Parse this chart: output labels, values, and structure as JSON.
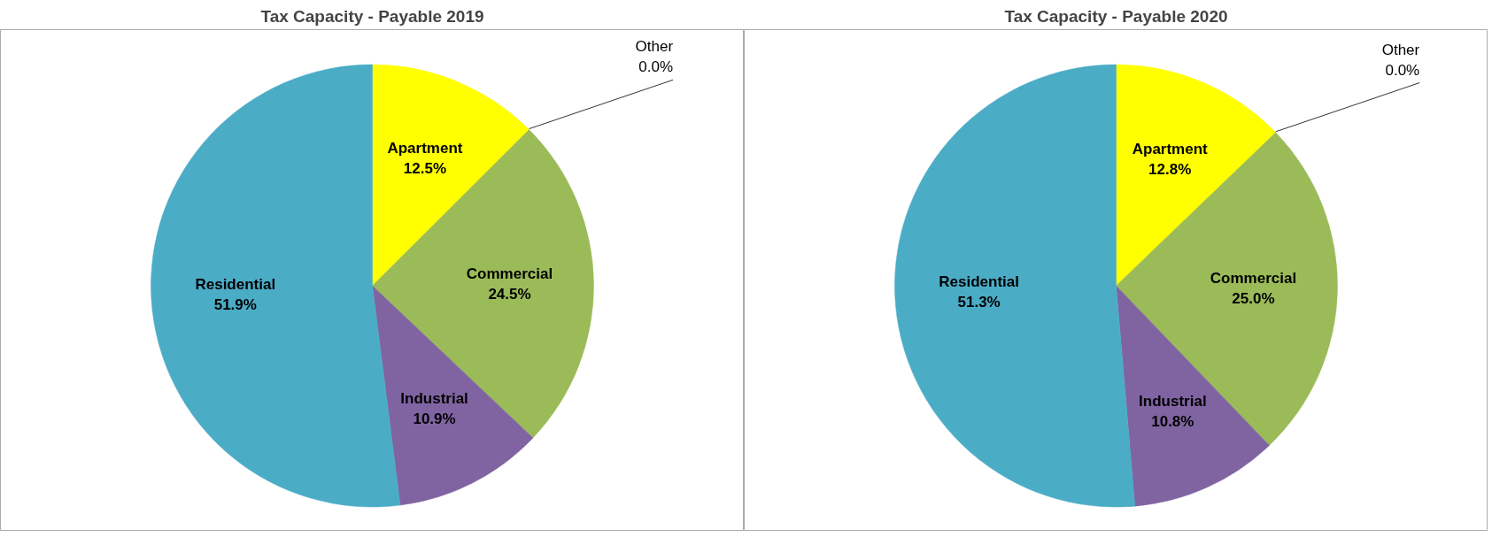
{
  "chart_data": [
    {
      "type": "pie",
      "title": "Tax Capacity - Payable 2019",
      "categories": [
        "Apartment",
        "Other",
        "Commercial",
        "Industrial",
        "Residential"
      ],
      "values": [
        12.5,
        0.0,
        24.5,
        10.9,
        51.9
      ],
      "value_labels": [
        "12.5%",
        "0.0%",
        "24.5%",
        "10.9%",
        "51.9%"
      ],
      "colors": [
        "#ffff00",
        "#f79646",
        "#9bbb59",
        "#8064a2",
        "#4bacc6"
      ]
    },
    {
      "type": "pie",
      "title": "Tax Capacity - Payable 2020",
      "categories": [
        "Apartment",
        "Other",
        "Commercial",
        "Industrial",
        "Residential"
      ],
      "values": [
        12.8,
        0.0,
        25.0,
        10.8,
        51.3
      ],
      "value_labels": [
        "12.8%",
        "0.0%",
        "25.0%",
        "10.8%",
        "51.3%"
      ],
      "colors": [
        "#ffff00",
        "#f79646",
        "#9bbb59",
        "#8064a2",
        "#4bacc6"
      ]
    }
  ]
}
